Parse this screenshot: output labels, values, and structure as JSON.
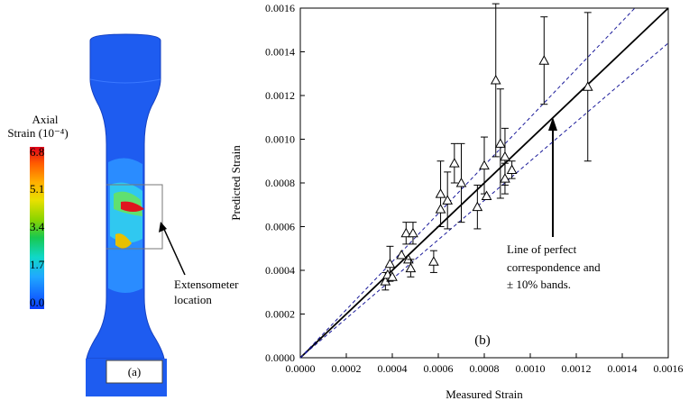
{
  "panel_a": {
    "label": "(a)",
    "colorbar_title": [
      "Axial",
      "Strain (10⁻⁴)"
    ],
    "colorbar_labels": [
      "6.8",
      "5.1",
      "3.4",
      "1.7",
      "0.0"
    ],
    "callout": [
      "Extensometer",
      "location"
    ]
  },
  "chart_data": {
    "type": "scatter",
    "panel_label": "(b)",
    "x_label": "Measured Strain",
    "y_label": "Predicted Strain",
    "annotation": [
      "Line of perfect",
      "correspondence and",
      "± 10% bands."
    ],
    "band_percent": 10,
    "xlim": [
      0,
      0.0016
    ],
    "ylim": [
      0,
      0.0016
    ],
    "xticks": [
      {
        "value": 0,
        "label": "0.0000"
      },
      {
        "value": 0.0002,
        "label": "0.0002"
      },
      {
        "value": 0.0004,
        "label": "0.0004"
      },
      {
        "value": 0.0006,
        "label": "0.0006"
      },
      {
        "value": 0.0008,
        "label": "0.0008"
      },
      {
        "value": 0.001,
        "label": "0.0010"
      },
      {
        "value": 0.0012,
        "label": "0.0012"
      },
      {
        "value": 0.0014,
        "label": "0.0014"
      },
      {
        "value": 0.0016,
        "label": "0.0016"
      }
    ],
    "yticks": [
      {
        "value": 0,
        "label": "0.0000"
      },
      {
        "value": 0.0002,
        "label": "0.0002"
      },
      {
        "value": 0.0004,
        "label": "0.0004"
      },
      {
        "value": 0.0006,
        "label": "0.0006"
      },
      {
        "value": 0.0008,
        "label": "0.0008"
      },
      {
        "value": 0.001,
        "label": "0.0010"
      },
      {
        "value": 0.0012,
        "label": "0.0012"
      },
      {
        "value": 0.0014,
        "label": "0.0014"
      },
      {
        "value": 0.0016,
        "label": "0.0016"
      }
    ],
    "x": [
      0.00037,
      0.00038,
      0.00039,
      0.0004,
      0.00044,
      0.00046,
      0.00047,
      0.00048,
      0.00049,
      0.00058,
      0.00061,
      0.00061,
      0.00064,
      0.00067,
      0.0007,
      0.00077,
      0.0008,
      0.00081,
      0.00085,
      0.00087,
      0.00089,
      0.00089,
      0.00092,
      0.00106,
      0.00125
    ],
    "values": [
      0.00035,
      0.00038,
      0.00043,
      0.00037,
      0.00047,
      0.00057,
      0.00045,
      0.00041,
      0.00057,
      0.00044,
      0.00075,
      0.00068,
      0.00072,
      0.00089,
      0.0008,
      0.00069,
      0.00088,
      0.00074,
      0.00127,
      0.00098,
      0.00092,
      0.00082,
      0.00086,
      0.00136,
      0.00124
    ],
    "errors": [
      4e-05,
      null,
      8e-05,
      null,
      null,
      5e-05,
      null,
      4e-05,
      5e-05,
      5e-05,
      0.00015,
      null,
      0.00013,
      9e-05,
      0.00018,
      0.0001,
      0.00013,
      null,
      0.00035,
      0.00025,
      0.00013,
      7e-05,
      4e-05,
      0.0002,
      0.00034
    ],
    "color": "#000000"
  }
}
